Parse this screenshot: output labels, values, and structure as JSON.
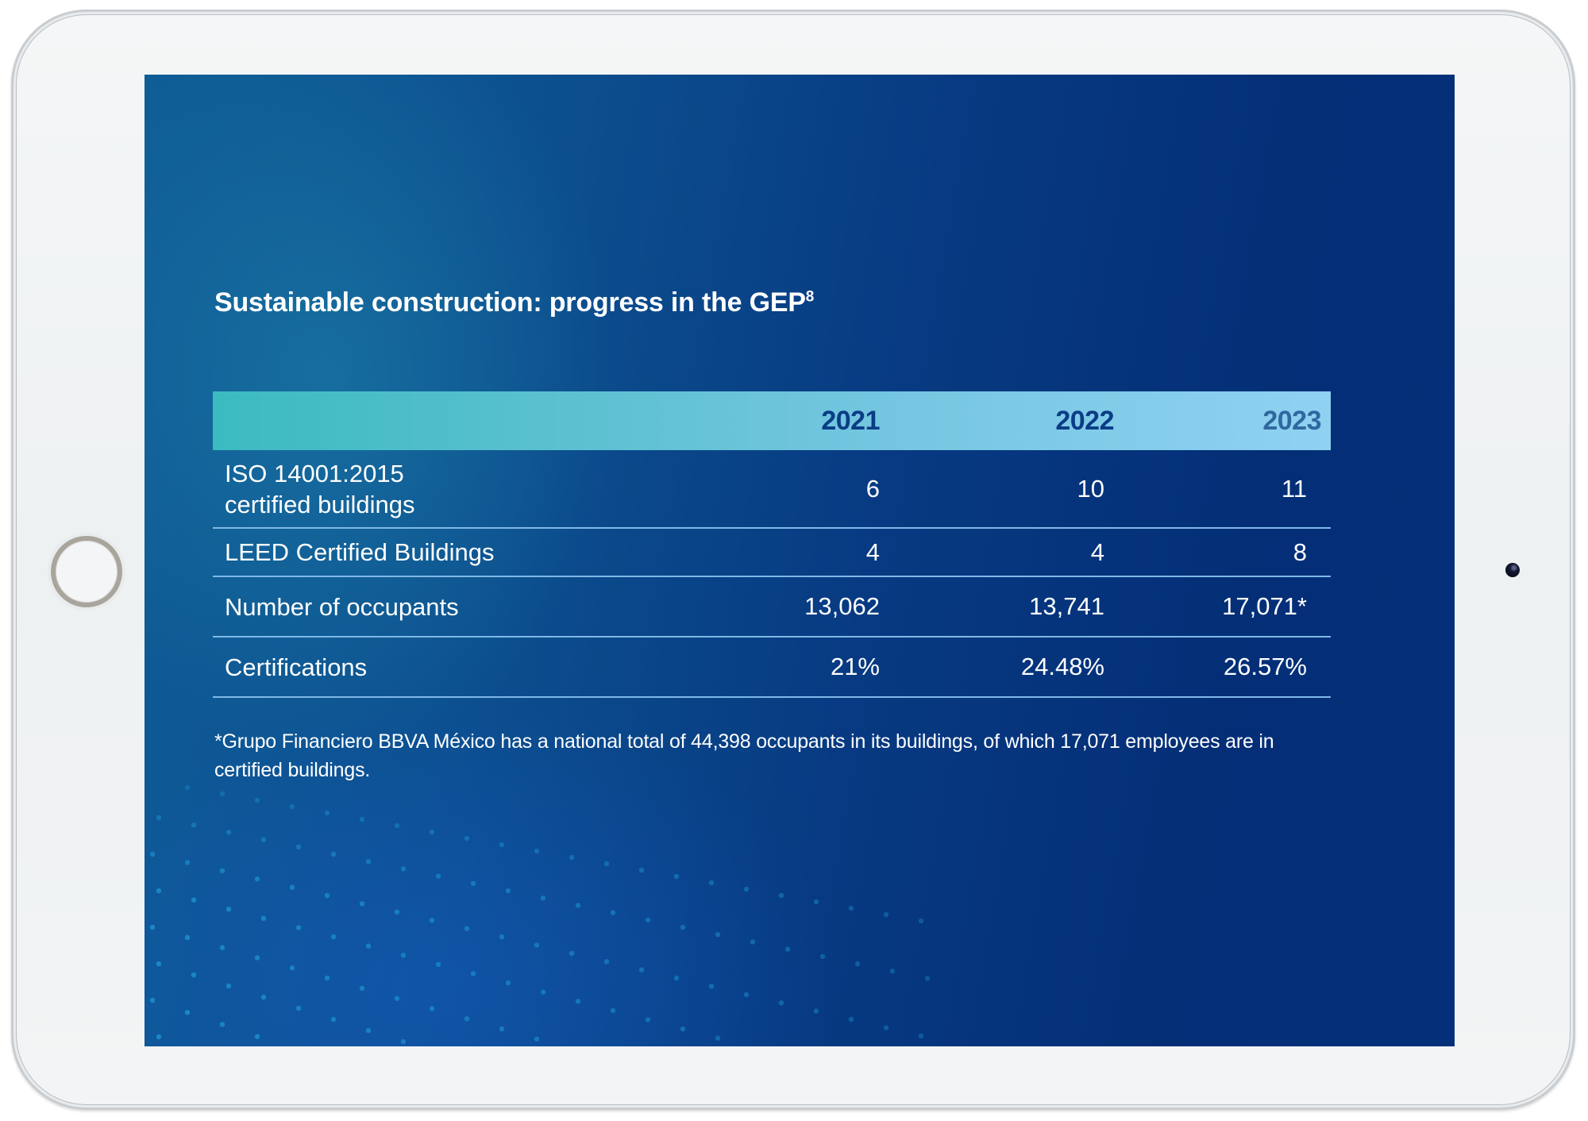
{
  "document": {
    "title": "Sustainable construction: progress in the GEP",
    "title_superscript": "8",
    "table": {
      "columns": [
        "",
        "2021",
        "2022",
        "2023"
      ],
      "rows": [
        {
          "label": "ISO 14001:2015 certified buildings",
          "values": [
            "6",
            "10",
            "11"
          ]
        },
        {
          "label": "LEED Certified Buildings",
          "values": [
            "4",
            "4",
            "8"
          ]
        },
        {
          "label": "Number of occupants",
          "values": [
            "13,062",
            "13,741",
            "17,071*"
          ]
        },
        {
          "label": "Certifications",
          "values": [
            "21%",
            "24.48%",
            "26.57%"
          ]
        }
      ]
    },
    "footnote": "*Grupo Financiero BBVA México has a national total of 44,398 occupants in its buildings, of which 17,071 employees are in certified buildings."
  },
  "device": {
    "home_button_icon": "home-button-icon",
    "camera_icon": "camera-icon"
  },
  "colors": {
    "screen_background": "#073a82",
    "header_gradient_start": "#3bbbbf",
    "header_gradient_end": "#8fd1f1",
    "header_text": "#0a3d86",
    "divider": "#7fb8e6",
    "dots": "#1b8bc9"
  }
}
